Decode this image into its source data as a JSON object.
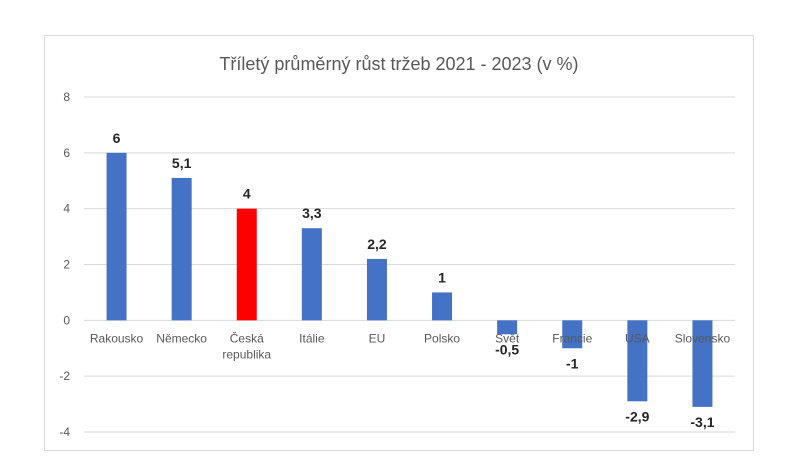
{
  "chart_data": {
    "type": "bar",
    "title": "Tříletý průměrný růst tržeb 2021 - 2023 (v %)",
    "xlabel": "",
    "ylabel": "",
    "ylim": [
      -4,
      8
    ],
    "yticks": [
      8,
      6,
      4,
      2,
      0,
      -2,
      -4
    ],
    "grid": true,
    "legend": "none",
    "categories": [
      "Rakousko",
      "Německo",
      "Česká republika",
      "Itálie",
      "EU",
      "Polsko",
      "Svět",
      "Francie",
      "USA",
      "Slovensko"
    ],
    "category_lines": [
      [
        "Rakousko"
      ],
      [
        "Německo"
      ],
      [
        "Česká",
        "republika"
      ],
      [
        "Itálie"
      ],
      [
        "EU"
      ],
      [
        "Polsko"
      ],
      [
        "Svět"
      ],
      [
        "Francie"
      ],
      [
        "USA"
      ],
      [
        "Slovensko"
      ]
    ],
    "values": [
      6,
      5.1,
      4,
      3.3,
      2.2,
      1,
      -0.5,
      -1,
      -2.9,
      -3.1
    ],
    "data_labels": [
      "6",
      "5,1",
      "4",
      "3,3",
      "2,2",
      "1",
      "-0,5",
      "-1",
      "-2,9",
      "-3,1"
    ],
    "colors": {
      "default": "#4472c4",
      "highlight": "#ff0000",
      "highlight_category": "Česká republika",
      "grid": "#d9d9d9"
    }
  }
}
